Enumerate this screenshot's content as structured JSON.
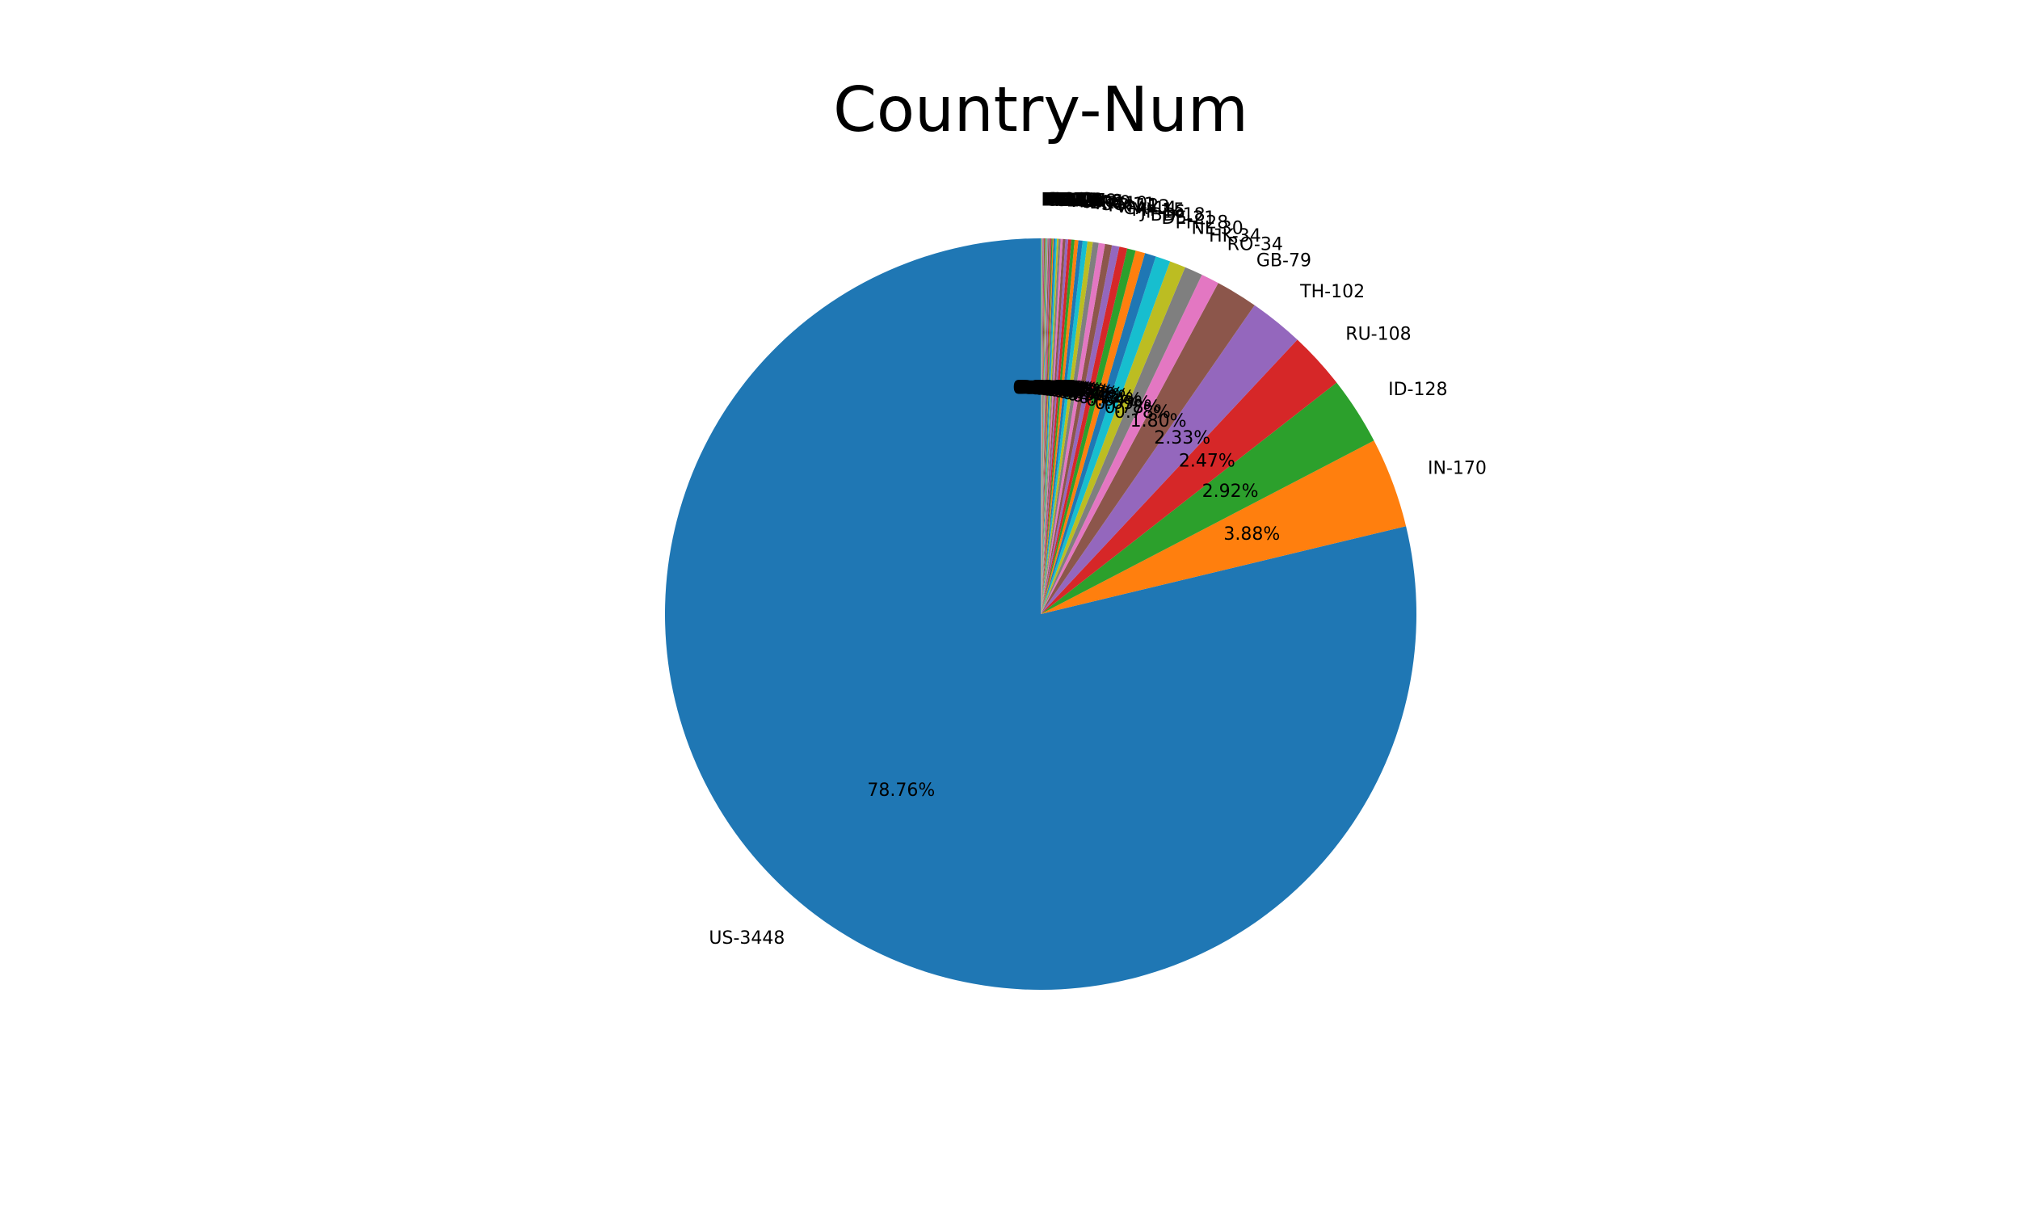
{
  "chart_data": {
    "type": "pie",
    "title": "Country-Num",
    "start_angle_deg": 90,
    "direction": "counterclockwise",
    "autopct_format": "%.2f%%",
    "slices": [
      {
        "label": "US-3448",
        "value": 3448,
        "color": "#1f77b4"
      },
      {
        "label": "IN-170",
        "value": 170,
        "color": "#ff7f0e"
      },
      {
        "label": "ID-128",
        "value": 128,
        "color": "#2ca02c"
      },
      {
        "label": "RU-108",
        "value": 108,
        "color": "#d62728"
      },
      {
        "label": "TH-102",
        "value": 102,
        "color": "#9467bd"
      },
      {
        "label": "GB-79",
        "value": 79,
        "color": "#8c564b"
      },
      {
        "label": "RO-34",
        "value": 34,
        "color": "#e377c2"
      },
      {
        "label": "HK-34",
        "value": 34,
        "color": "#7f7f7f"
      },
      {
        "label": "NL-30",
        "value": 30,
        "color": "#bcbd22"
      },
      {
        "label": "PH-28",
        "value": 28,
        "color": "#17becf"
      },
      {
        "label": "DE-21",
        "value": 21,
        "color": "#1f77b4"
      },
      {
        "label": "BD-18",
        "value": 18,
        "color": "#ff7f0e"
      },
      {
        "label": "JP-16",
        "value": 16,
        "color": "#2ca02c"
      },
      {
        "label": "MY-15",
        "value": 15,
        "color": "#d62728"
      },
      {
        "label": "CA-14",
        "value": 14,
        "color": "#9467bd"
      },
      {
        "label": "VN-13",
        "value": 13,
        "color": "#8c564b"
      },
      {
        "label": "FR-12",
        "value": 12,
        "color": "#e377c2"
      },
      {
        "label": "SG-11",
        "value": 11,
        "color": "#7f7f7f"
      },
      {
        "label": "KR-10",
        "value": 10,
        "color": "#bcbd22"
      },
      {
        "label": "BR-9",
        "value": 9,
        "color": "#17becf"
      },
      {
        "label": "PK-8",
        "value": 8,
        "color": "#1f77b4"
      },
      {
        "label": "UA-7",
        "value": 7,
        "color": "#ff7f0e"
      },
      {
        "label": "TW-6",
        "value": 6,
        "color": "#2ca02c"
      },
      {
        "label": "AU-6",
        "value": 6,
        "color": "#d62728"
      },
      {
        "label": "IT-5",
        "value": 5,
        "color": "#9467bd"
      },
      {
        "label": "ES-5",
        "value": 5,
        "color": "#8c564b"
      },
      {
        "label": "TR-4",
        "value": 4,
        "color": "#e377c2"
      },
      {
        "label": "PL-4",
        "value": 4,
        "color": "#7f7f7f"
      },
      {
        "label": "MX-3",
        "value": 3,
        "color": "#bcbd22"
      },
      {
        "label": "EG-3",
        "value": 3,
        "color": "#17becf"
      },
      {
        "label": "AR-3",
        "value": 3,
        "color": "#1f77b4"
      },
      {
        "label": "CN-2",
        "value": 2,
        "color": "#ff7f0e"
      },
      {
        "label": "IR-2",
        "value": 2,
        "color": "#2ca02c"
      },
      {
        "label": "SA-2",
        "value": 2,
        "color": "#d62728"
      },
      {
        "label": "ZA-2",
        "value": 2,
        "color": "#9467bd"
      },
      {
        "label": "CO-2",
        "value": 2,
        "color": "#8c564b"
      },
      {
        "label": "KE-1",
        "value": 1,
        "color": "#e377c2"
      },
      {
        "label": "NG-1",
        "value": 1,
        "color": "#7f7f7f"
      },
      {
        "label": "SE-1",
        "value": 1,
        "color": "#bcbd22"
      },
      {
        "label": "CH-1",
        "value": 1,
        "color": "#17becf"
      },
      {
        "label": "BE-1",
        "value": 1,
        "color": "#1f77b4"
      },
      {
        "label": "AT-1",
        "value": 1,
        "color": "#ff7f0e"
      },
      {
        "label": "CZ-1",
        "value": 1,
        "color": "#2ca02c"
      },
      {
        "label": "PT-1",
        "value": 1,
        "color": "#d62728"
      },
      {
        "label": "GR-1",
        "value": 1,
        "color": "#9467bd"
      },
      {
        "label": "IL-1",
        "value": 1,
        "color": "#8c564b"
      },
      {
        "label": "AE-1",
        "value": 1,
        "color": "#e377c2"
      },
      {
        "label": "NZ-1",
        "value": 1,
        "color": "#7f7f7f"
      },
      {
        "label": "IE-1",
        "value": 1,
        "color": "#bcbd22"
      },
      {
        "label": "DK-1",
        "value": 1,
        "color": "#17becf"
      }
    ],
    "legend": false,
    "grid": false
  }
}
